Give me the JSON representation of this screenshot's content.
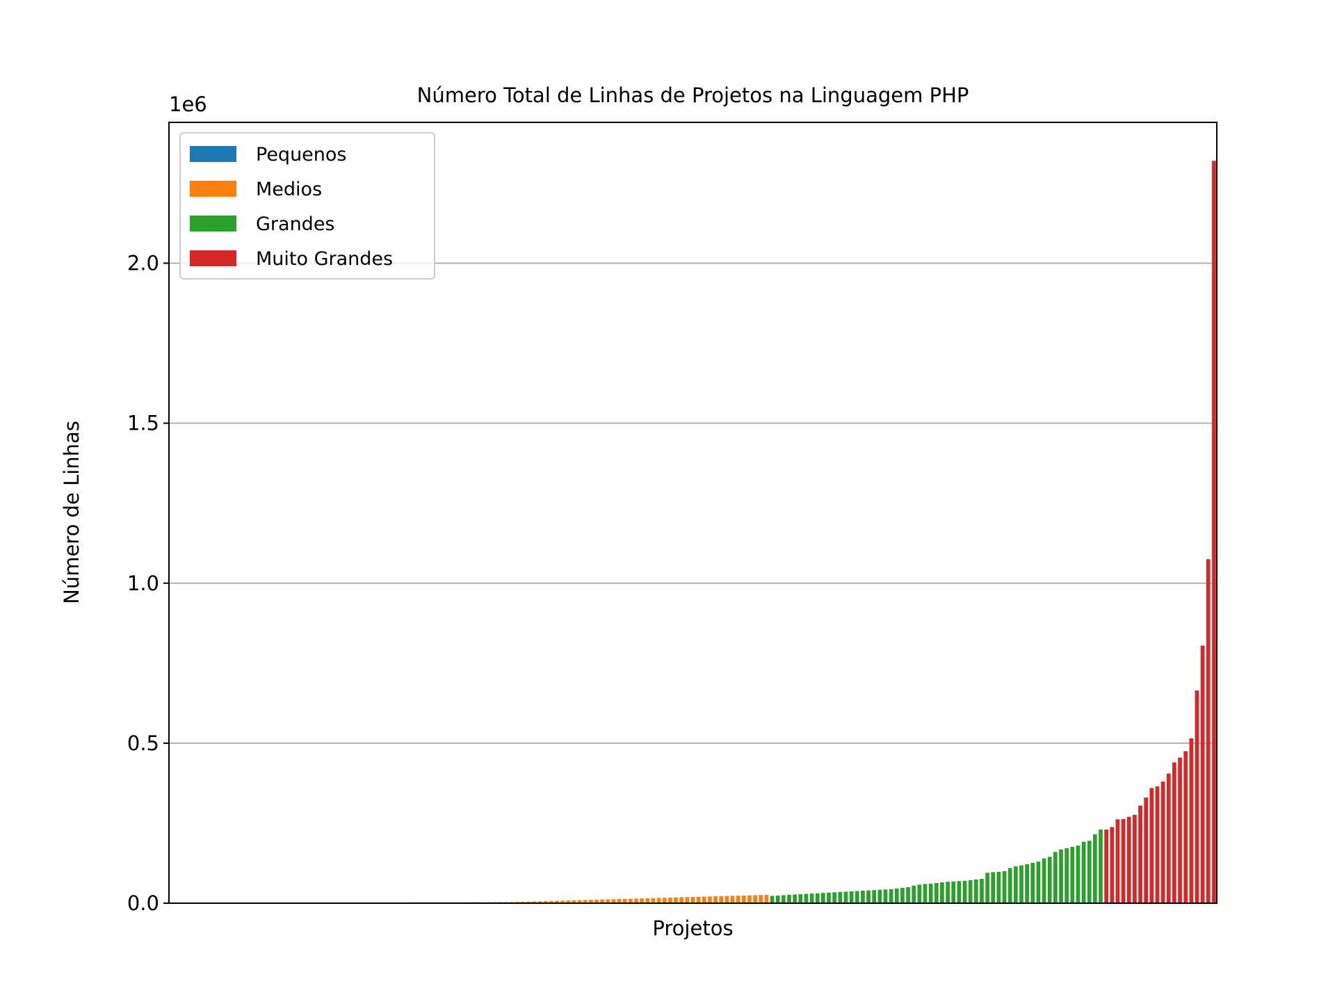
{
  "chart_data": {
    "type": "bar",
    "title": "Número Total de Linhas de Projetos na Linguagem PHP",
    "xlabel": "Projetos",
    "ylabel": "Número de Linhas",
    "offset_text": "1e6",
    "ylim": [
      0,
      2440000
    ],
    "yticks": [
      0,
      500000,
      1000000,
      1500000,
      2000000
    ],
    "ytick_labels": [
      "0.0",
      "0.5",
      "1.0",
      "1.5",
      "2.0"
    ],
    "grid": "horizontal",
    "legend_position": "top-left",
    "series": [
      {
        "name": "Pequenos",
        "color": "#1f77b4",
        "values": [
          200,
          250,
          300,
          350,
          400,
          450,
          500,
          550,
          600,
          650,
          700,
          750,
          800,
          850,
          900,
          950,
          1000,
          1050,
          1100,
          1150,
          1200,
          1250,
          1300,
          1350,
          1400,
          1450,
          1500,
          1550,
          1600,
          1650,
          1700,
          1750,
          1800,
          1850,
          1900,
          1950,
          2000,
          2050,
          2100,
          2150,
          2200,
          2250,
          2300,
          2350,
          2400,
          2450,
          2500,
          2550,
          2600,
          2650,
          2700,
          2750,
          2800,
          2850,
          2900,
          2950,
          3000,
          3050,
          3100,
          3150
        ]
      },
      {
        "name": "Medios",
        "color": "#ff7f0e",
        "values": [
          3500,
          4000,
          4500,
          5000,
          5500,
          6000,
          6500,
          7000,
          7500,
          8000,
          8500,
          9000,
          9500,
          10000,
          10500,
          11000,
          11500,
          12000,
          12500,
          13000,
          13500,
          14000,
          14500,
          15000,
          15500,
          16000,
          16500,
          17000,
          17500,
          18000,
          18500,
          19000,
          19500,
          20000,
          20500,
          21000,
          21500,
          22000,
          22500,
          23000,
          23500,
          24000,
          24500,
          25000,
          25500,
          26000
        ]
      },
      {
        "name": "Grandes",
        "color": "#2ca02c",
        "values": [
          23000,
          24000,
          25000,
          26000,
          27000,
          28000,
          29000,
          30000,
          31000,
          32000,
          33000,
          34000,
          35000,
          36000,
          37000,
          38000,
          39000,
          40000,
          41000,
          42000,
          43000,
          44000,
          46000,
          48000,
          50000,
          55000,
          58000,
          60000,
          61000,
          63000,
          65000,
          67000,
          68000,
          69000,
          70000,
          72000,
          74000,
          76000,
          95000,
          97000,
          98000,
          100000,
          110000,
          115000,
          118000,
          122000,
          126000,
          130000,
          140000,
          145000,
          160000,
          168000,
          172000,
          176000,
          180000,
          192000,
          195000,
          215000,
          230000
        ]
      },
      {
        "name": "Muito Grandes",
        "color": "#d62728",
        "values": [
          230000,
          238000,
          262000,
          263000,
          270000,
          276000,
          305000,
          330000,
          360000,
          365000,
          380000,
          405000,
          440000,
          455000,
          475000,
          515000,
          665000,
          805000,
          1075000,
          2320000
        ]
      }
    ]
  }
}
